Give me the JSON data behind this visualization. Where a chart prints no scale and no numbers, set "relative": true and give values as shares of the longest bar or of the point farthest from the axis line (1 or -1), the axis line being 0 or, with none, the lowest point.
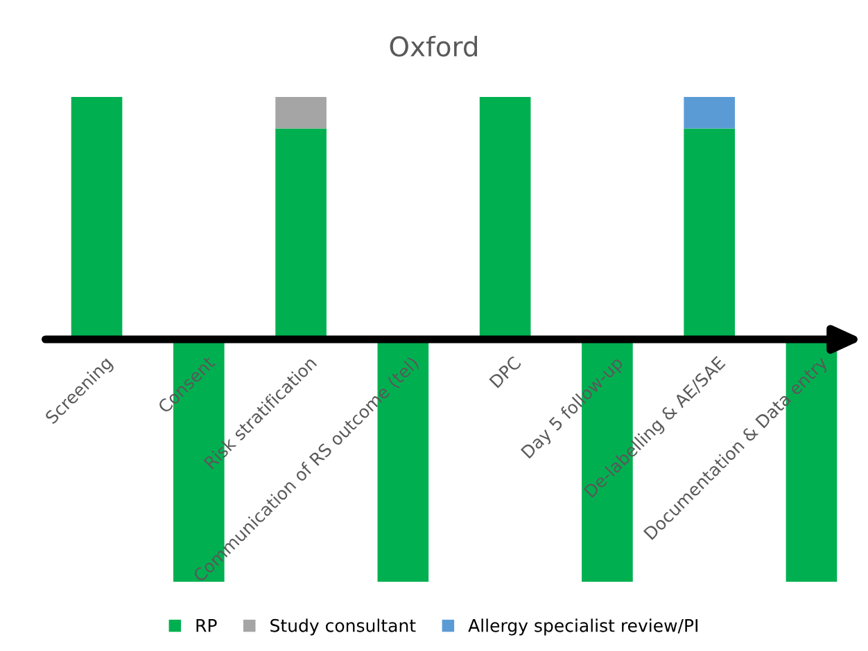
{
  "chart_data": {
    "type": "bar",
    "title": "Oxford",
    "relative": true,
    "stacked": true,
    "legend": "bottom",
    "categories": [
      "Screening",
      "Consent",
      "Risk stratification",
      "Communication of RS outcome (tel)",
      "DPC",
      "Day 5 follow-up",
      "De-labelling & AE/SAE",
      "Documentation & Data entry"
    ],
    "series": [
      {
        "name": "RP",
        "color": "#00b050",
        "values": [
          1,
          -1,
          0.87,
          -1,
          1,
          -1,
          0.87,
          -1
        ]
      },
      {
        "name": "Study consultant",
        "color": "#a5a5a5",
        "values": [
          null,
          null,
          0.13,
          null,
          null,
          null,
          null,
          null
        ]
      },
      {
        "name": "Allergy specialist review/PI",
        "color": "#5b9bd5",
        "values": [
          null,
          null,
          null,
          null,
          null,
          null,
          0.13,
          null
        ]
      }
    ]
  }
}
